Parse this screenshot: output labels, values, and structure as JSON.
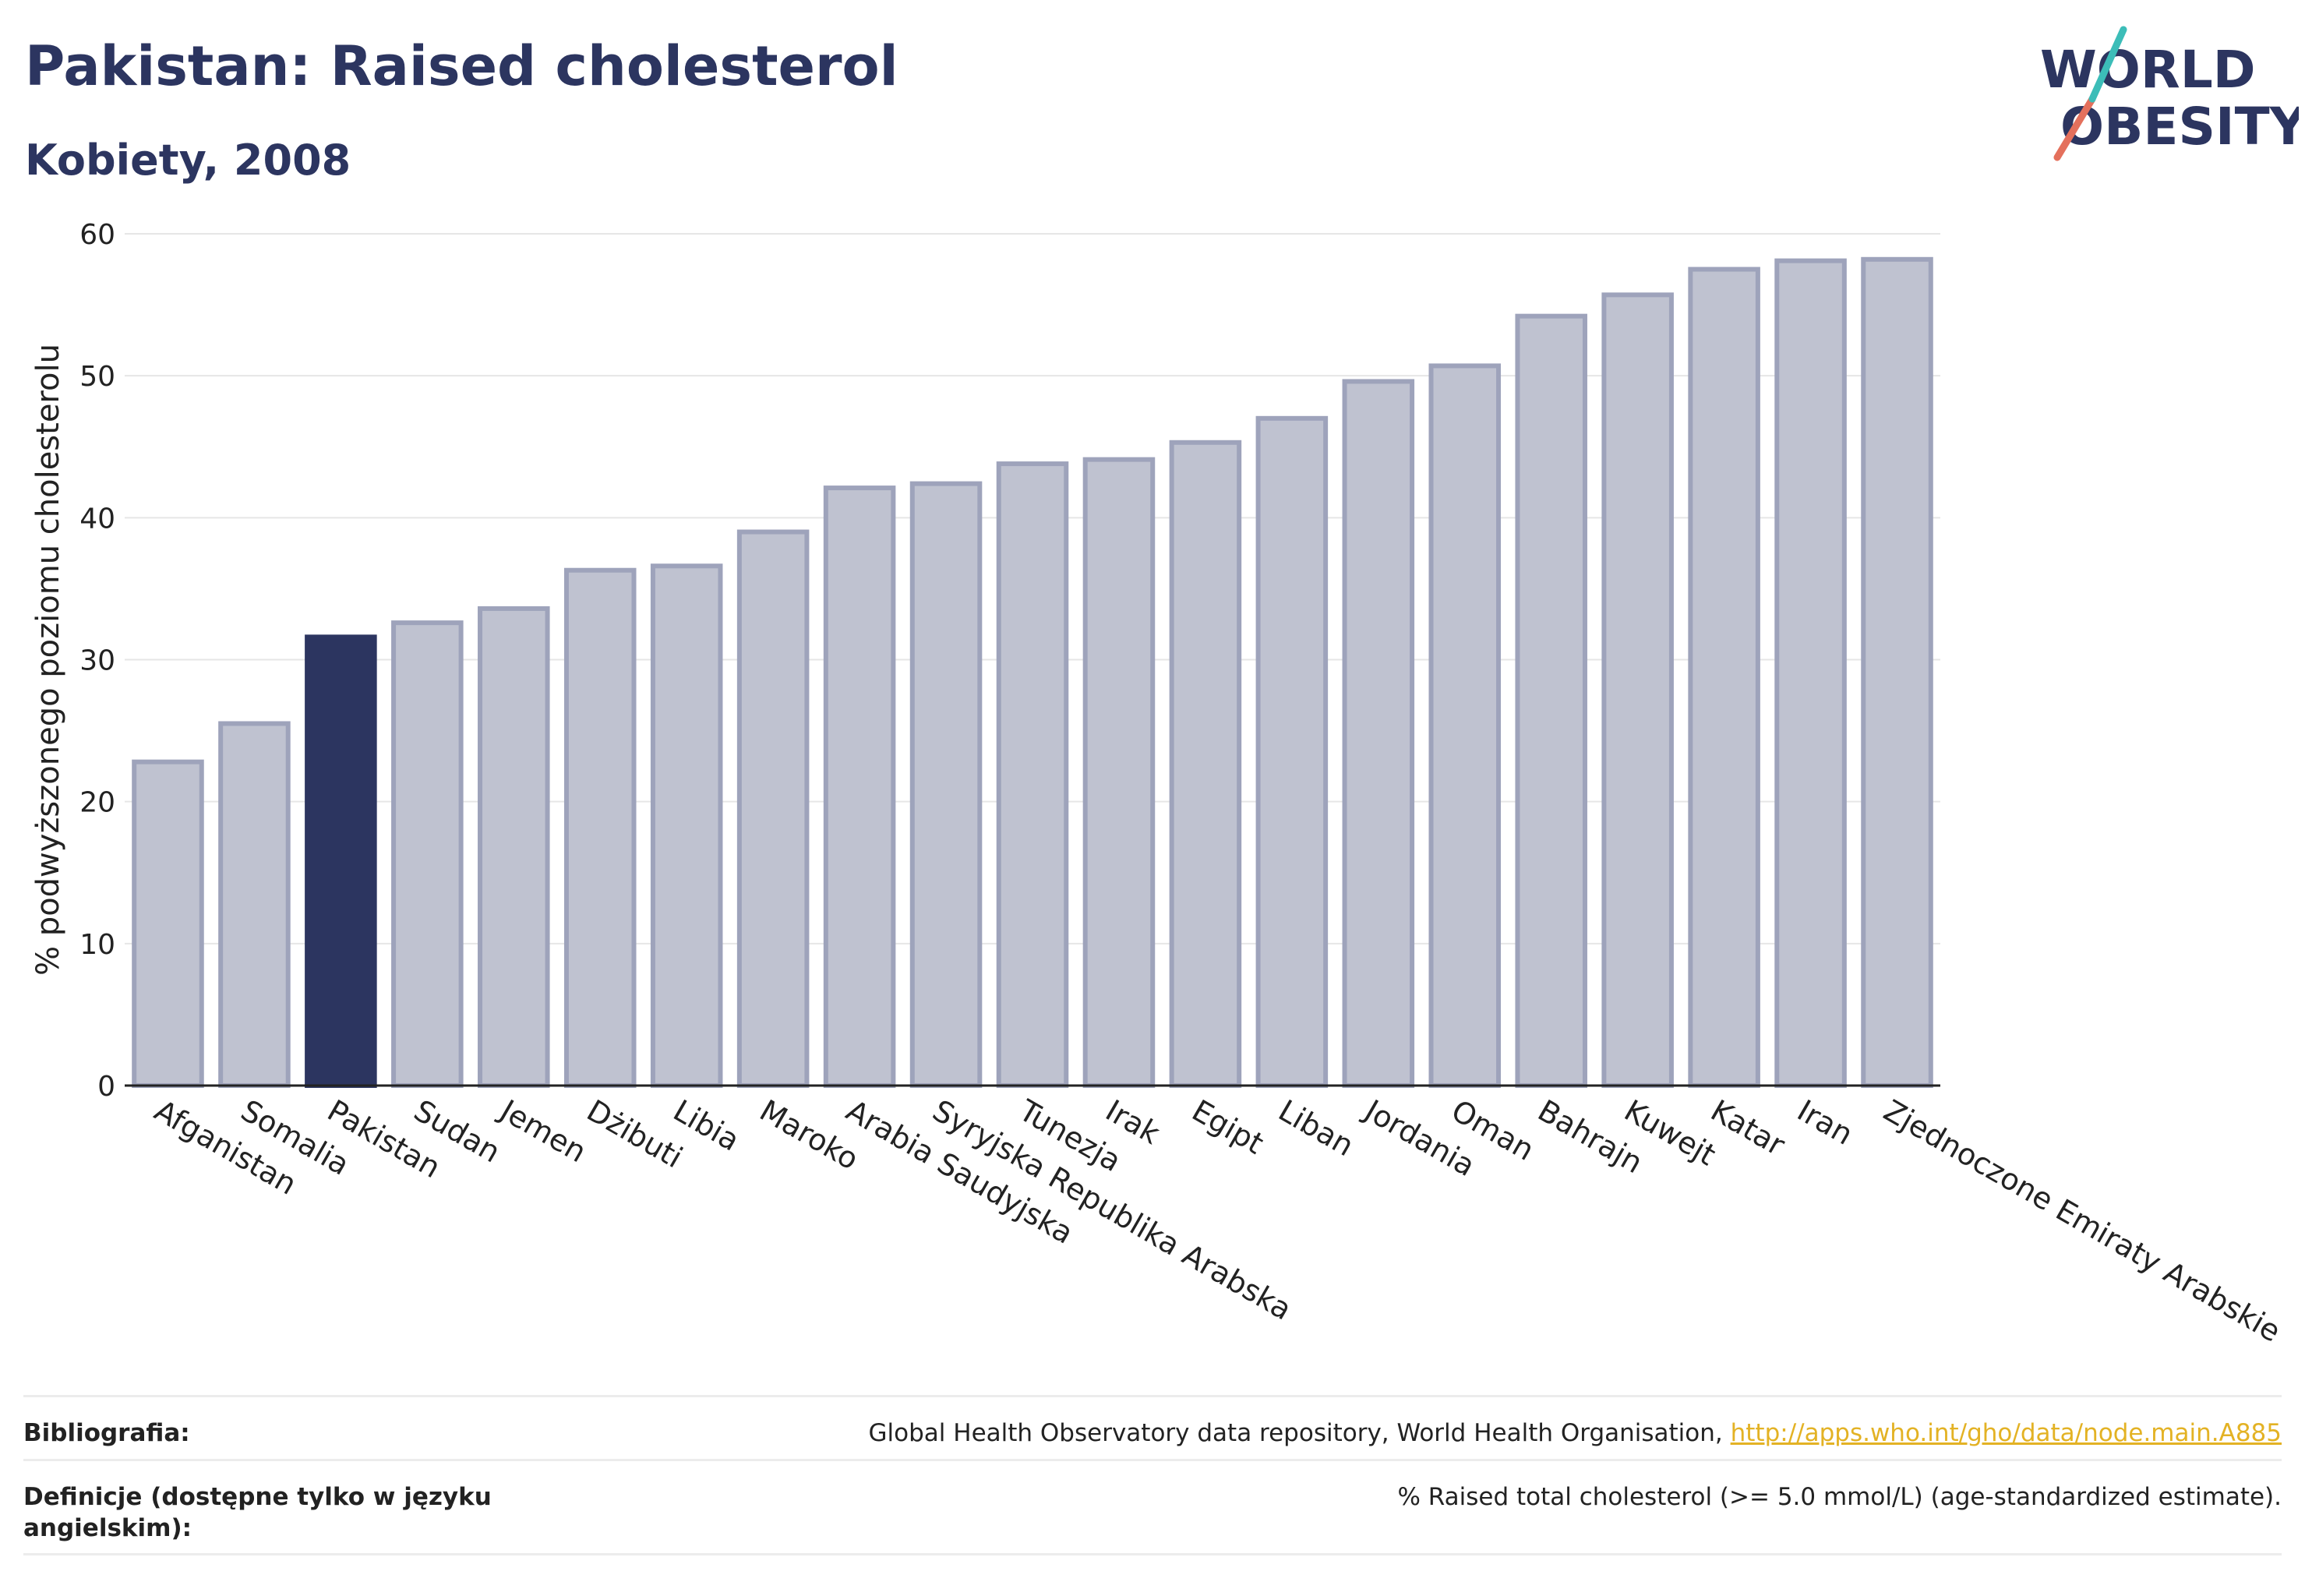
{
  "header": {
    "title": "Pakistan: Raised cholesterol",
    "subtitle": "Kobiety, 2008"
  },
  "logo": {
    "line1": "WORLD",
    "line2": "OBESITY"
  },
  "colors": {
    "highlight": "#2c3560",
    "bar_fill": "#bfc2d0",
    "bar_stroke": "#9ea3bb"
  },
  "chart_data": {
    "type": "bar",
    "title": "Pakistan: Raised cholesterol",
    "subtitle": "Kobiety, 2008",
    "xlabel": "",
    "ylabel": "% podwyższonego poziomu cholesterolu",
    "ylim": [
      0,
      60
    ],
    "yticks": [
      0,
      10,
      20,
      30,
      40,
      50,
      60
    ],
    "grid": true,
    "highlight": "Pakistan",
    "categories": [
      "Afganistan",
      "Somalia",
      "Pakistan",
      "Sudan",
      "Jemen",
      "Dżibuti",
      "Libia",
      "Maroko",
      "Arabia Saudyjska",
      "Syryjska Republika Arabska",
      "Tunezja",
      "Irak",
      "Egipt",
      "Liban",
      "Jordania",
      "Oman",
      "Bahrajn",
      "Kuwejt",
      "Katar",
      "Iran",
      "Zjednoczone Emiraty Arabskie"
    ],
    "values": [
      22.8,
      25.5,
      31.6,
      32.6,
      33.6,
      36.3,
      36.6,
      39.0,
      42.1,
      42.4,
      43.8,
      44.1,
      45.3,
      47.0,
      49.6,
      50.7,
      54.2,
      55.7,
      57.5,
      58.1,
      58.2
    ]
  },
  "footer": {
    "bibliography_label": "Bibliografia:",
    "bibliography_text": "Global Health Observatory data repository, World Health Organisation, ",
    "bibliography_link": "http://apps.who.int/gho/data/node.main.A885",
    "definitions_label": "Definicje (dostępne tylko w języku angielskim):",
    "definitions_text": "% Raised total cholesterol (>= 5.0 mmol/L) (age-standardized estimate)."
  }
}
